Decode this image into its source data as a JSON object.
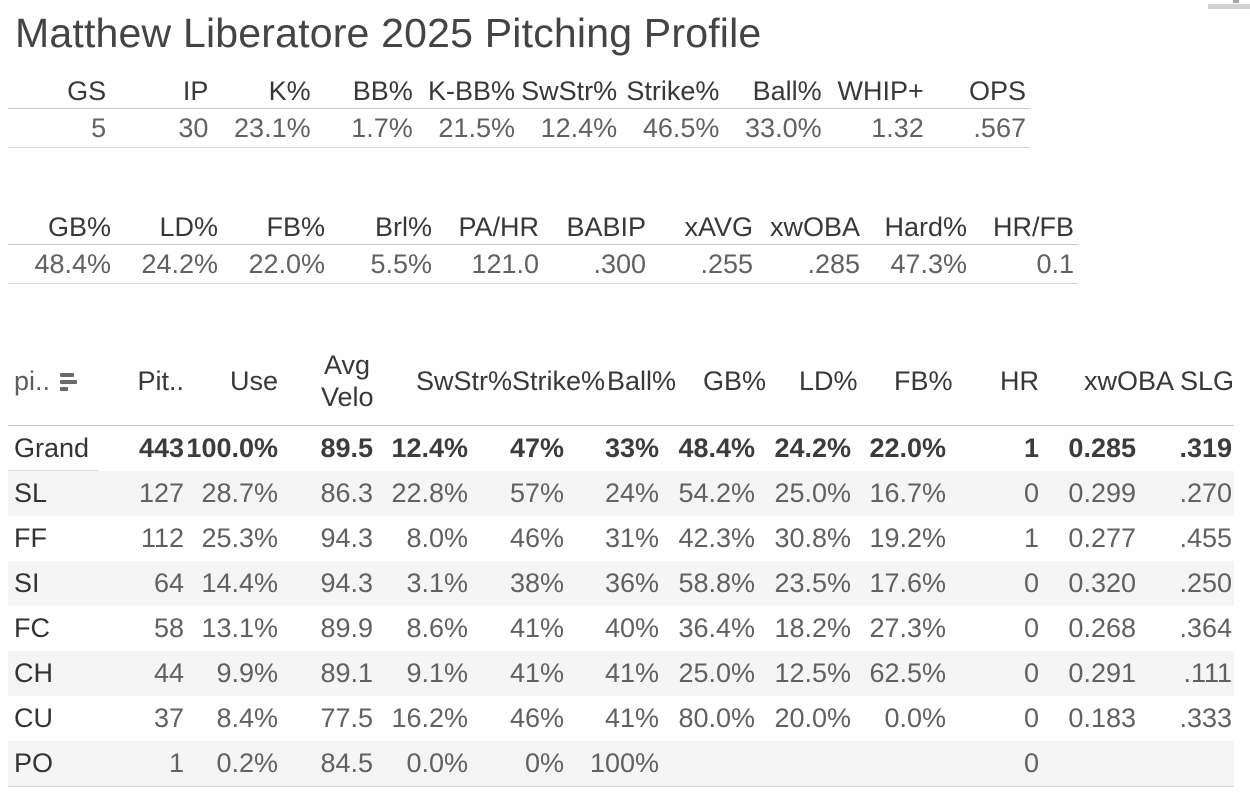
{
  "page": {
    "title": "Matthew Liberatore 2025 Pitching Profile"
  },
  "colors": {
    "row_stripe": "#f5f5f6",
    "border_light": "#d4d4d4",
    "border_header": "#c6c6c6",
    "text_dark": "#333333",
    "text_value": "#616161"
  },
  "summary_table_1": {
    "columns": [
      "GS",
      "IP",
      "K%",
      "BB%",
      "K-BB%",
      "SwStr%",
      "Strike%",
      "Ball%",
      "WHIP+",
      "OPS"
    ],
    "values": [
      "5",
      "30",
      "23.1%",
      "1.7%",
      "21.5%",
      "12.4%",
      "46.5%",
      "33.0%",
      "1.32",
      ".567"
    ]
  },
  "summary_table_2": {
    "columns": [
      "GB%",
      "LD%",
      "FB%",
      "Brl%",
      "PA/HR",
      "BABIP",
      "xAVG",
      "xwOBA",
      "Hard%",
      "HR/FB"
    ],
    "values": [
      "48.4%",
      "24.2%",
      "22.0%",
      "5.5%",
      "121.0",
      ".300",
      ".255",
      ".285",
      "47.3%",
      "0.1"
    ]
  },
  "pitch_table": {
    "row_header_label": "pi..",
    "sort_icon": "sort-descending",
    "columns": [
      "Pit..",
      "Use",
      "Avg Velo",
      "SwStr%",
      "Strike%",
      "Ball%",
      "GB%",
      "LD%",
      "FB%",
      "HR",
      "xwOBA",
      "SLG"
    ],
    "rows": [
      {
        "label": "Grand ..",
        "bold": true,
        "cells": [
          "443",
          "100.0%",
          "89.5",
          "12.4%",
          "47%",
          "33%",
          "48.4%",
          "24.2%",
          "22.0%",
          "1",
          "0.285",
          ".319"
        ]
      },
      {
        "label": "SL",
        "bold": false,
        "cells": [
          "127",
          "28.7%",
          "86.3",
          "22.8%",
          "57%",
          "24%",
          "54.2%",
          "25.0%",
          "16.7%",
          "0",
          "0.299",
          ".270"
        ]
      },
      {
        "label": "FF",
        "bold": false,
        "cells": [
          "112",
          "25.3%",
          "94.3",
          "8.0%",
          "46%",
          "31%",
          "42.3%",
          "30.8%",
          "19.2%",
          "1",
          "0.277",
          ".455"
        ]
      },
      {
        "label": "SI",
        "bold": false,
        "cells": [
          "64",
          "14.4%",
          "94.3",
          "3.1%",
          "38%",
          "36%",
          "58.8%",
          "23.5%",
          "17.6%",
          "0",
          "0.320",
          ".250"
        ]
      },
      {
        "label": "FC",
        "bold": false,
        "cells": [
          "58",
          "13.1%",
          "89.9",
          "8.6%",
          "41%",
          "40%",
          "36.4%",
          "18.2%",
          "27.3%",
          "0",
          "0.268",
          ".364"
        ]
      },
      {
        "label": "CH",
        "bold": false,
        "cells": [
          "44",
          "9.9%",
          "89.1",
          "9.1%",
          "41%",
          "41%",
          "25.0%",
          "12.5%",
          "62.5%",
          "0",
          "0.291",
          ".111"
        ]
      },
      {
        "label": "CU",
        "bold": false,
        "cells": [
          "37",
          "8.4%",
          "77.5",
          "16.2%",
          "46%",
          "41%",
          "80.0%",
          "20.0%",
          "0.0%",
          "0",
          "0.183",
          ".333"
        ]
      },
      {
        "label": "PO",
        "bold": false,
        "cells": [
          "1",
          "0.2%",
          "84.5",
          "0.0%",
          "0%",
          "100%",
          "",
          "",
          "",
          "0",
          "",
          ""
        ]
      }
    ]
  }
}
